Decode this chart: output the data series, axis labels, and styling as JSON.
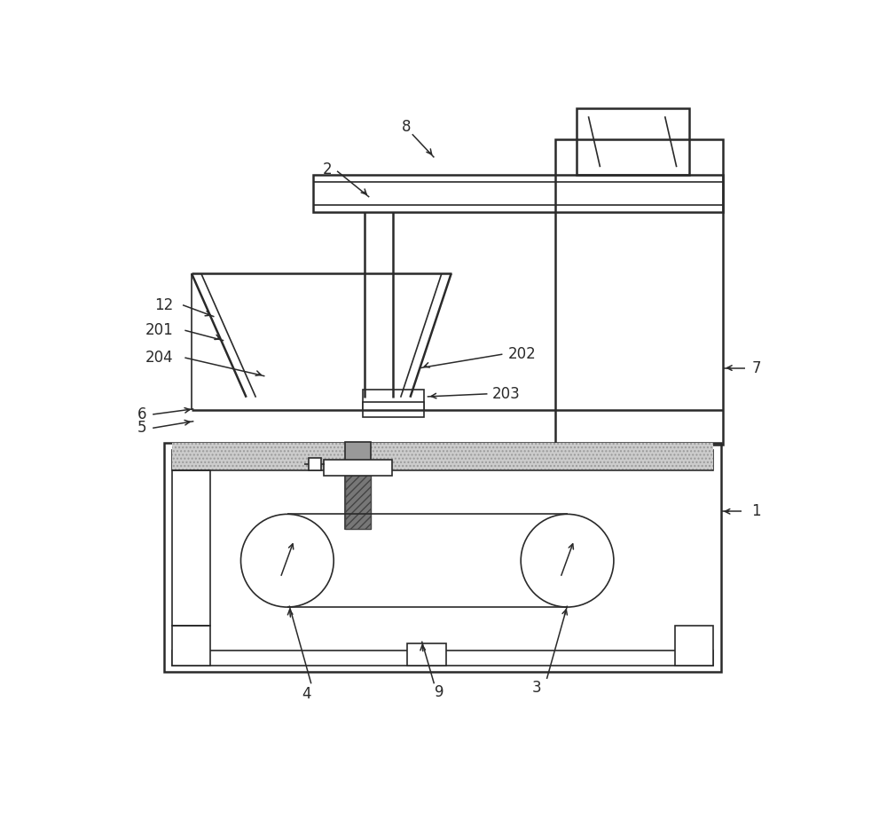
{
  "bg_color": "#ffffff",
  "line_color": "#2a2a2a",
  "fig_width": 10.0,
  "fig_height": 9.33,
  "lw_main": 1.8,
  "lw_thin": 1.2,
  "label_fs": 12
}
